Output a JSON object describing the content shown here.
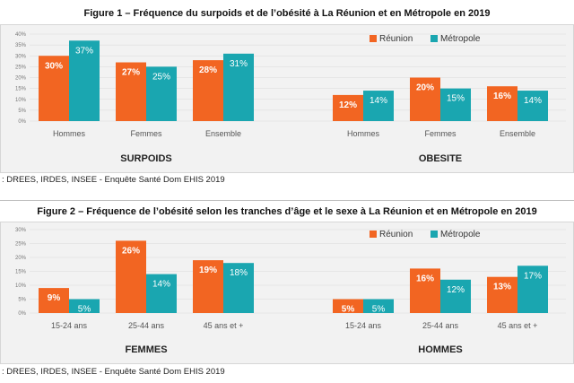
{
  "figures": [
    {
      "title": "Figure 1 – Fréquence du surpoids et de l’obésité à La Réunion et en Métropole en 2019",
      "source": ": DREES, IRDES, INSEE - Enquête Santé Dom EHIS 2019"
    },
    {
      "title": "Figure 2 – Fréquence de l’obésité selon les tranches d’âge et le sexe à La Réunion et en Métropole en 2019",
      "source": ": DREES, IRDES, INSEE - Enquête Santé Dom EHIS 2019"
    }
  ],
  "colors": {
    "reunion": "#f26522",
    "metropole": "#1aa6b0",
    "panel_bg": "#f2f2f2",
    "grid": "#d9d9d9"
  },
  "chart_data": [
    {
      "type": "bar",
      "figure": 1,
      "axis": {
        "ylim": [
          0,
          40
        ],
        "ticks": [
          0,
          5,
          10,
          15,
          20,
          25,
          30,
          35,
          40
        ],
        "tick_suffix": "%"
      },
      "legend": [
        "Réunion",
        "Métropole"
      ],
      "legend_position": "top-right",
      "groups": [
        {
          "label": "SURPOIDS",
          "categories": [
            "Hommes",
            "Femmes",
            "Ensemble"
          ],
          "series": [
            {
              "name": "Réunion",
              "values": [
                30,
                27,
                28
              ],
              "labels": [
                "30%",
                "27%",
                "28%"
              ]
            },
            {
              "name": "Métropole",
              "values": [
                37,
                25,
                31
              ],
              "labels": [
                "37%",
                "25%",
                "31%"
              ]
            }
          ]
        },
        {
          "label": "OBESITE",
          "categories": [
            "Hommes",
            "Femmes",
            "Ensemble"
          ],
          "series": [
            {
              "name": "Réunion",
              "values": [
                12,
                20,
                16
              ],
              "labels": [
                "12%",
                "20%",
                "16%"
              ]
            },
            {
              "name": "Métropole",
              "values": [
                14,
                15,
                14
              ],
              "labels": [
                "14%",
                "15%",
                "14%"
              ]
            }
          ]
        }
      ]
    },
    {
      "type": "bar",
      "figure": 2,
      "axis": {
        "ylim": [
          0,
          30
        ],
        "ticks": [
          0,
          5,
          10,
          15,
          20,
          25,
          30
        ],
        "tick_suffix": "%"
      },
      "legend": [
        "Réunion",
        "Métropole"
      ],
      "legend_position": "top-right",
      "groups": [
        {
          "label": "FEMMES",
          "categories": [
            "15-24 ans",
            "25-44 ans",
            "45 ans et +"
          ],
          "series": [
            {
              "name": "Réunion",
              "values": [
                9,
                26,
                19
              ],
              "labels": [
                "9%",
                "26%",
                "19%"
              ]
            },
            {
              "name": "Métropole",
              "values": [
                5,
                14,
                18
              ],
              "labels": [
                "5%",
                "14%",
                "18%"
              ]
            }
          ]
        },
        {
          "label": "HOMMES",
          "categories": [
            "15-24 ans",
            "25-44 ans",
            "45 ans et +"
          ],
          "series": [
            {
              "name": "Réunion",
              "values": [
                5,
                16,
                13
              ],
              "labels": [
                "5%",
                "16%",
                "13%"
              ]
            },
            {
              "name": "Métropole",
              "values": [
                5,
                12,
                17
              ],
              "labels": [
                "5%",
                "12%",
                "17%"
              ]
            }
          ]
        }
      ]
    }
  ]
}
